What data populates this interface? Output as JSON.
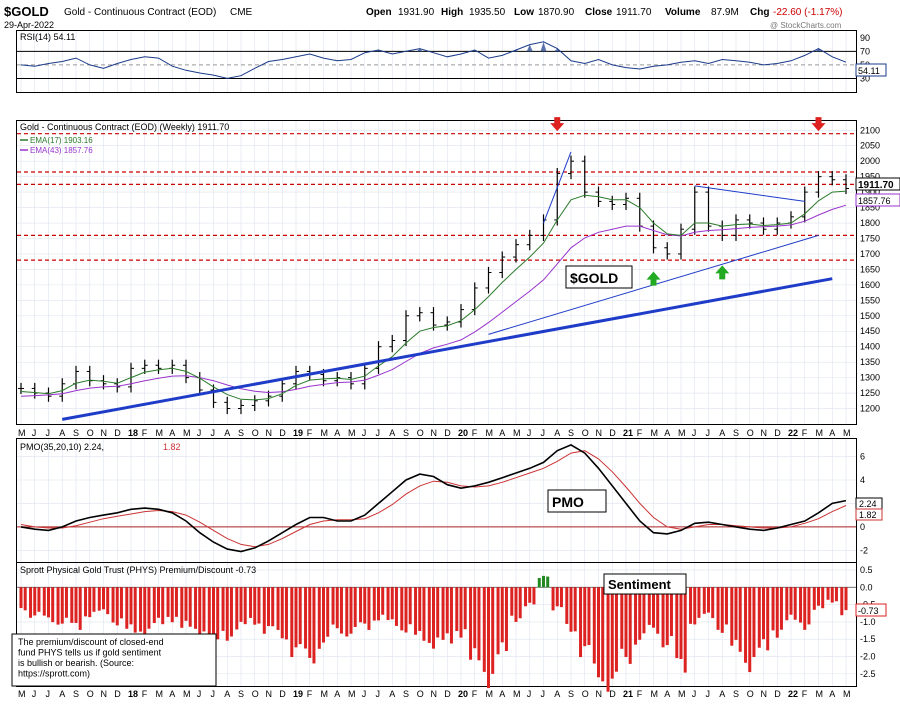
{
  "header": {
    "symbol": "$GOLD",
    "name": "Gold - Continuous Contract (EOD)",
    "exchange": "CME",
    "date": "29-Apr-2022",
    "open_label": "Open",
    "open": "1931.90",
    "high_label": "High",
    "high": "1935.50",
    "low_label": "Low",
    "low": "1870.90",
    "close_label": "Close",
    "close": "1911.70",
    "volume_label": "Volume",
    "volume": "87.9M",
    "chg_label": "Chg",
    "chg": "-22.60 (-1.17%)",
    "watermark": "@ StockCharts.com"
  },
  "colors": {
    "price": "#000000",
    "ema17": "#2a7a2a",
    "ema43": "#9933cc",
    "trend": "#1e3cc8",
    "resistance": "#cc0000",
    "pmo_signal": "#cc3333",
    "sentiment_neg": "#dd2222",
    "sentiment_pos": "#228822",
    "arrow_down": "#dd2222",
    "arrow_up": "#22aa22"
  },
  "rsi": {
    "label": "RSI(14) 54.11",
    "last": "54.11",
    "ticks": [
      "90",
      "70",
      "50",
      "30"
    ]
  },
  "price_panel": {
    "legend_title": "Gold - Continuous Contract (EOD) (Weekly) 1911.70",
    "ema17_label": "EMA(17) 1903.16",
    "ema43_label": "EMA(43) 1857.76",
    "last_price": "1911.70",
    "last_ema": "1857.76",
    "annotation": "$GOLD",
    "ticks": [
      "2100",
      "2050",
      "2000",
      "1950",
      "1900",
      "1850",
      "1800",
      "1750",
      "1700",
      "1650",
      "1600",
      "1550",
      "1500",
      "1450",
      "1400",
      "1350",
      "1300",
      "1250",
      "1200"
    ]
  },
  "pmo": {
    "label_main": "PMO(35,20,10) 2.24,",
    "label_signal": "1.82",
    "annotation": "PMO",
    "last": "2.24",
    "signal_last": "1.82",
    "ticks": [
      "6",
      "4",
      "2",
      "0",
      "-2"
    ]
  },
  "sentiment": {
    "label": "Sprott Physical Gold Trust (PHYS) Premium/Discount -0.73",
    "annotation": "Sentiment",
    "last": "-0.73",
    "ticks": [
      "0.5",
      "0.0",
      "-0.5",
      "-1.0",
      "-1.5",
      "-2.0",
      "-2.5"
    ],
    "note": "The premium/discount of closed-end fund PHYS tells us if gold sentiment is bullish or bearish. (Source: https://sprott.com)"
  },
  "x_axis": {
    "months": [
      "M",
      "J",
      "J",
      "A",
      "S",
      "O",
      "N",
      "D",
      "18",
      "F",
      "M",
      "A",
      "M",
      "J",
      "J",
      "A",
      "S",
      "O",
      "N",
      "D",
      "19",
      "F",
      "M",
      "A",
      "M",
      "J",
      "J",
      "A",
      "S",
      "O",
      "N",
      "D",
      "20",
      "F",
      "M",
      "A",
      "M",
      "J",
      "J",
      "A",
      "S",
      "O",
      "N",
      "D",
      "21",
      "F",
      "M",
      "A",
      "M",
      "J",
      "J",
      "A",
      "S",
      "O",
      "N",
      "D",
      "22",
      "F",
      "M",
      "A",
      "M"
    ]
  },
  "chart_data": [
    {
      "type": "line",
      "title": "RSI(14) 54.11",
      "x_range": [
        "2017-05",
        "2022-04"
      ],
      "ylim": [
        10,
        100
      ],
      "reference_lines": [
        70,
        50,
        30
      ],
      "series": [
        {
          "name": "RSI(14)",
          "values": [
            50,
            48,
            52,
            55,
            60,
            50,
            45,
            52,
            58,
            62,
            60,
            48,
            42,
            38,
            35,
            30,
            34,
            45,
            55,
            58,
            62,
            66,
            60,
            56,
            58,
            68,
            72,
            66,
            70,
            74,
            68,
            62,
            66,
            72,
            60,
            64,
            72,
            80,
            84,
            74,
            56,
            52,
            58,
            50,
            46,
            44,
            48,
            50,
            54,
            56,
            52,
            58,
            56,
            54,
            50,
            52,
            56,
            64,
            74,
            62,
            54
          ]
        }
      ]
    },
    {
      "type": "line",
      "title": "Gold - Continuous Contract (EOD) (Weekly) 1911.70",
      "x_range": [
        "2017-05",
        "2022-04"
      ],
      "ylim": [
        1150,
        2130
      ],
      "resistance_lines": [
        2089,
        1965,
        1925,
        1760,
        1680
      ],
      "series": [
        {
          "name": "Gold - Continuous Contract (EOD) (Weekly) 1911.70",
          "values": [
            1265,
            1250,
            1240,
            1280,
            1320,
            1290,
            1280,
            1270,
            1330,
            1340,
            1330,
            1340,
            1300,
            1260,
            1220,
            1200,
            1210,
            1225,
            1240,
            1280,
            1320,
            1310,
            1290,
            1300,
            1280,
            1330,
            1400,
            1420,
            1500,
            1510,
            1470,
            1480,
            1520,
            1590,
            1640,
            1690,
            1730,
            1760,
            1810,
            1960,
            2000,
            1900,
            1870,
            1860,
            1880,
            1790,
            1720,
            1700,
            1780,
            1900,
            1790,
            1760,
            1810,
            1800,
            1780,
            1800,
            1820,
            1900,
            1950,
            1940,
            1911.7
          ]
        },
        {
          "name": "EMA(17) 1903.16",
          "values": [
            1255,
            1252,
            1248,
            1258,
            1282,
            1292,
            1288,
            1282,
            1300,
            1318,
            1325,
            1330,
            1320,
            1298,
            1270,
            1245,
            1230,
            1228,
            1232,
            1248,
            1275,
            1292,
            1296,
            1298,
            1294,
            1305,
            1338,
            1368,
            1412,
            1450,
            1462,
            1468,
            1484,
            1520,
            1562,
            1608,
            1650,
            1690,
            1735,
            1810,
            1875,
            1890,
            1885,
            1875,
            1875,
            1850,
            1800,
            1765,
            1760,
            1800,
            1800,
            1790,
            1795,
            1797,
            1792,
            1795,
            1800,
            1830,
            1872,
            1900,
            1903.16
          ]
        },
        {
          "name": "EMA(43) 1857.76",
          "values": [
            1240,
            1242,
            1244,
            1248,
            1258,
            1266,
            1270,
            1272,
            1280,
            1290,
            1298,
            1305,
            1306,
            1300,
            1290,
            1276,
            1264,
            1256,
            1252,
            1254,
            1262,
            1272,
            1278,
            1284,
            1286,
            1292,
            1308,
            1326,
            1352,
            1378,
            1396,
            1408,
            1422,
            1448,
            1478,
            1512,
            1546,
            1580,
            1616,
            1668,
            1720,
            1752,
            1770,
            1780,
            1790,
            1790,
            1776,
            1762,
            1758,
            1770,
            1776,
            1778,
            1782,
            1786,
            1788,
            1790,
            1794,
            1806,
            1826,
            1844,
            1857.76
          ]
        }
      ],
      "trendlines": [
        {
          "from": [
            "2017-08",
            1165
          ],
          "to": [
            "2022-04",
            1620
          ]
        },
        {
          "from": [
            "2020-03",
            1440
          ],
          "to": [
            "2022-03",
            1760
          ]
        },
        {
          "from": [
            "2020-07",
            1800
          ],
          "to": [
            "2020-09",
            2030
          ]
        },
        {
          "from": [
            "2021-06",
            1920
          ],
          "to": [
            "2022-02",
            1870
          ]
        }
      ],
      "arrows": [
        {
          "dir": "down",
          "x": "2020-08",
          "y": 2110
        },
        {
          "dir": "down",
          "x": "2022-03",
          "y": 2110
        },
        {
          "dir": "up",
          "x": "2021-03",
          "y": 1630
        },
        {
          "dir": "up",
          "x": "2021-08",
          "y": 1650
        }
      ]
    },
    {
      "type": "line",
      "title": "PMO(35,20,10) 2.24, 1.82",
      "x_range": [
        "2017-05",
        "2022-04"
      ],
      "ylim": [
        -3,
        7.5
      ],
      "series": [
        {
          "name": "PMO(35,20,10) 2.24",
          "values": [
            0,
            -0.2,
            -0.3,
            0,
            0.5,
            0.8,
            1.0,
            1.2,
            1.5,
            1.6,
            1.5,
            1.2,
            0.5,
            -0.5,
            -1.3,
            -1.9,
            -2.1,
            -1.8,
            -1.2,
            -0.5,
            0.2,
            0.8,
            0.8,
            0.5,
            0.5,
            1.0,
            2.0,
            3.0,
            4.0,
            4.5,
            4.3,
            3.6,
            3.3,
            3.5,
            3.8,
            4.2,
            4.6,
            5.0,
            5.5,
            6.5,
            7.0,
            6.3,
            5.0,
            3.5,
            2.0,
            0.5,
            -0.5,
            -0.6,
            -0.3,
            0.3,
            0.4,
            0.2,
            0,
            -0.2,
            -0.3,
            -0.1,
            0.2,
            0.5,
            1.2,
            2.0,
            2.24
          ]
        },
        {
          "name": "1.82",
          "values": [
            0.2,
            0,
            -0.1,
            -0.1,
            0.1,
            0.4,
            0.7,
            0.9,
            1.1,
            1.3,
            1.4,
            1.3,
            1.0,
            0.4,
            -0.3,
            -1.0,
            -1.5,
            -1.7,
            -1.5,
            -1.0,
            -0.4,
            0.2,
            0.5,
            0.6,
            0.6,
            0.7,
            1.2,
            1.9,
            2.8,
            3.5,
            3.9,
            3.8,
            3.5,
            3.4,
            3.5,
            3.8,
            4.2,
            4.6,
            5.0,
            5.6,
            6.3,
            6.5,
            5.8,
            4.7,
            3.4,
            2.0,
            0.8,
            0,
            -0.2,
            0,
            0.2,
            0.2,
            0.1,
            0,
            -0.1,
            -0.1,
            0,
            0.3,
            0.7,
            1.3,
            1.82
          ]
        }
      ]
    },
    {
      "type": "bar",
      "title": "Sprott Physical Gold Trust (PHYS) Premium/Discount -0.73",
      "x_range": [
        "2017-05",
        "2022-04"
      ],
      "ylim": [
        -2.85,
        0.7
      ],
      "values": [
        -0.6,
        -0.8,
        -0.9,
        -1.0,
        -1.1,
        -0.8,
        -0.7,
        -1.0,
        -1.2,
        -1.3,
        -1.0,
        -0.9,
        -1.1,
        -1.3,
        -1.5,
        -1.4,
        -1.1,
        -1.0,
        -1.2,
        -1.4,
        -1.8,
        -2.0,
        -1.6,
        -1.2,
        -1.3,
        -1.1,
        -0.9,
        -1.0,
        -1.2,
        -1.4,
        -1.6,
        -1.5,
        -1.3,
        -2.0,
        -2.6,
        -1.8,
        -0.9,
        -0.5,
        0.3,
        -0.6,
        -1.2,
        -1.8,
        -2.5,
        -2.7,
        -2.0,
        -1.5,
        -1.2,
        -1.6,
        -2.2,
        -1.0,
        -0.8,
        -1.2,
        -1.7,
        -2.2,
        -1.7,
        -1.3,
        -0.9,
        -1.1,
        -0.6,
        -0.4,
        -0.73
      ]
    }
  ]
}
